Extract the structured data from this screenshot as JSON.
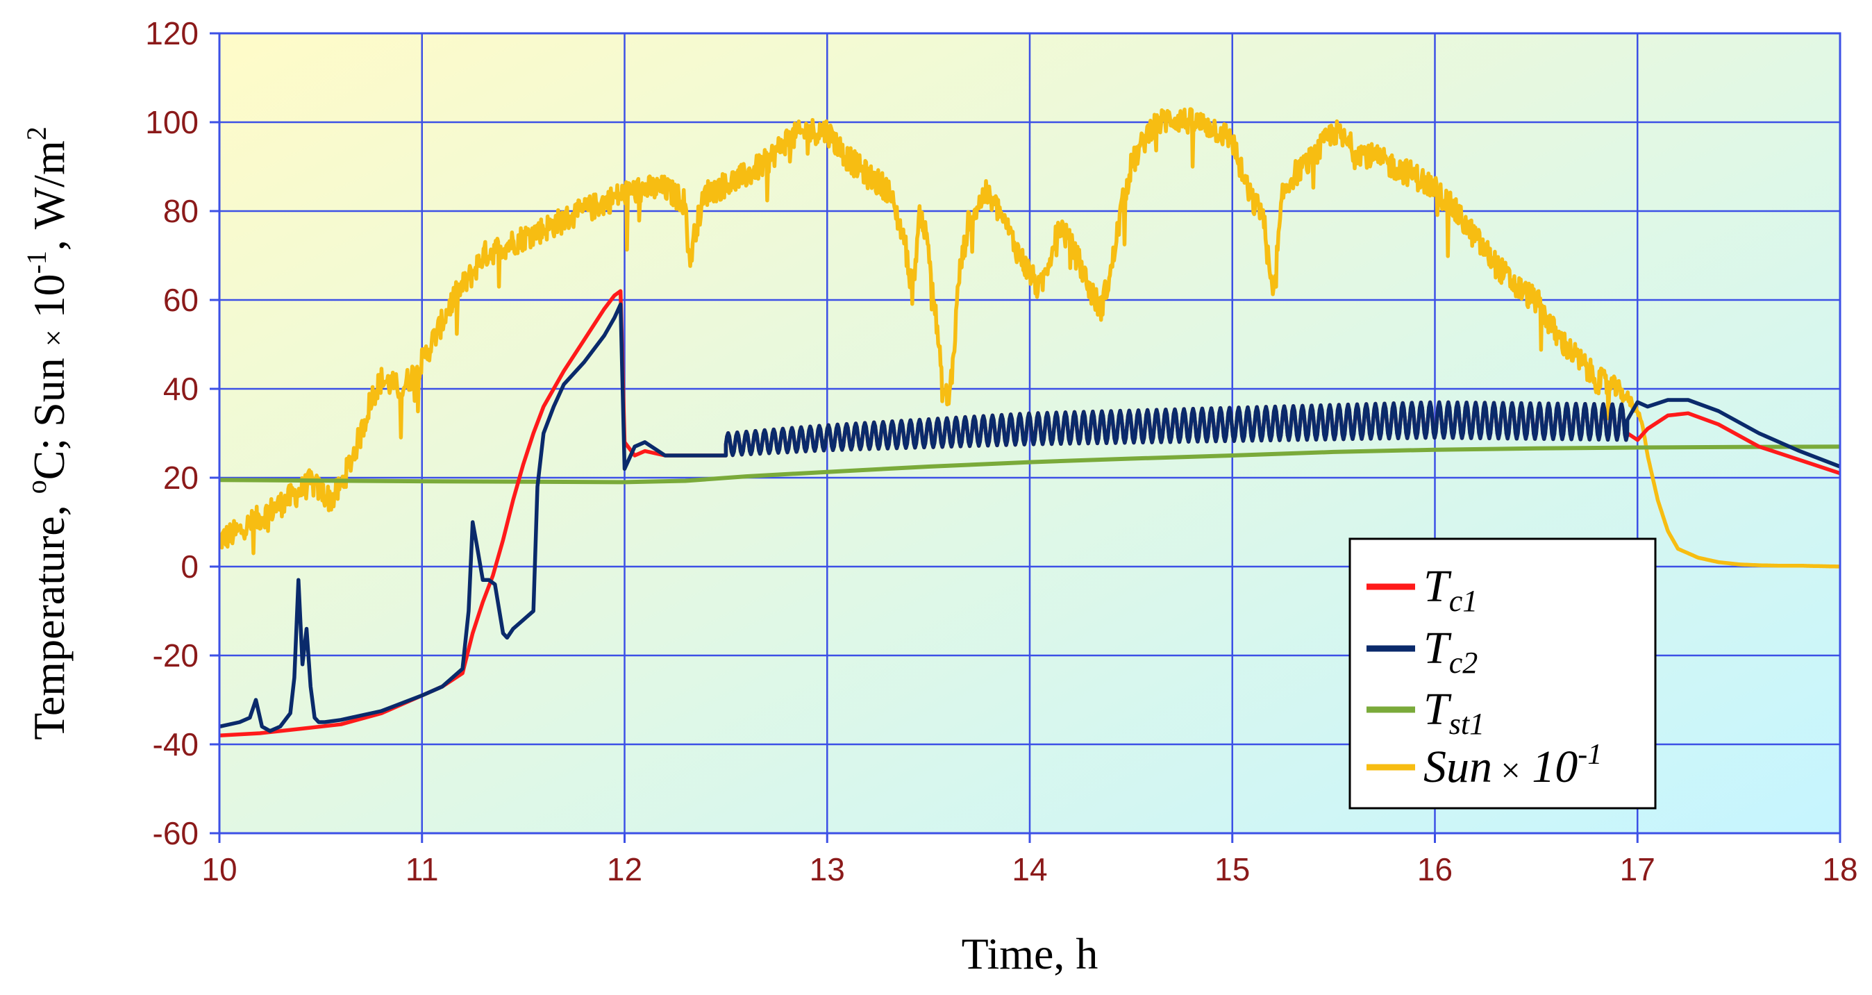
{
  "chart_data": {
    "type": "line",
    "xlabel": "Time, h",
    "ylabel": {
      "part1": "Temperature, ",
      "part2_sup": "o",
      "part3": "C;  Sun ",
      "part4_times": "×",
      "part5": " 10",
      "part6_sup": "-1",
      "part7": ", W/m",
      "part8_sup": "2"
    },
    "xlim": [
      10,
      18
    ],
    "ylim": [
      -60,
      120
    ],
    "x_ticks": [
      "10",
      "11",
      "12",
      "13",
      "14",
      "15",
      "16",
      "17",
      "18"
    ],
    "y_ticks": [
      "120",
      "100",
      "80",
      "60",
      "40",
      "20",
      "0",
      "-20",
      "-40",
      "-60"
    ],
    "grid": true,
    "legend_position": "lower-right",
    "legend": [
      {
        "id": "tc1",
        "base": "T",
        "sub": "c1",
        "suffix_times": "",
        "suffix": "",
        "suffix_sup": ""
      },
      {
        "id": "tc2",
        "base": "T",
        "sub": "c2",
        "suffix_times": "",
        "suffix": "",
        "suffix_sup": ""
      },
      {
        "id": "tst1",
        "base": "T",
        "sub": "st1",
        "suffix_times": "",
        "suffix": "",
        "suffix_sup": ""
      },
      {
        "id": "sun",
        "base": "Sun",
        "sub": "",
        "suffix_times": " ×",
        "suffix": " 10",
        "suffix_sup": "-1"
      }
    ],
    "colors": {
      "tc1": "#ff1a1a",
      "tc2": "#0a2a6b",
      "tst1": "#7aaa3a",
      "sun": "#f7bd12",
      "grid": "#3c50e6",
      "tick_labels": "#8b1a1a",
      "bg_top_left": "#fffbc8",
      "bg_bottom_right": "#c6f5ff"
    },
    "series": [
      {
        "key": "sun",
        "x": [
          10.0,
          10.1,
          10.2,
          10.3,
          10.4,
          10.45,
          10.5,
          10.55,
          10.6,
          10.7,
          10.75,
          10.8,
          10.9,
          11.0,
          11.1,
          11.15,
          11.2,
          11.25,
          11.3,
          11.4,
          11.5,
          11.6,
          11.7,
          11.8,
          11.9,
          12.0,
          12.1,
          12.2,
          12.3,
          12.32,
          12.35,
          12.4,
          12.5,
          12.6,
          12.7,
          12.8,
          12.9,
          13.0,
          13.1,
          13.2,
          13.3,
          13.38,
          13.42,
          13.46,
          13.5,
          13.55,
          13.57,
          13.6,
          13.62,
          13.65,
          13.7,
          13.78,
          13.85,
          13.95,
          14.05,
          14.1,
          14.15,
          14.25,
          14.3,
          14.35,
          14.4,
          14.45,
          14.5,
          14.6,
          14.7,
          14.8,
          14.9,
          15.0,
          15.05,
          15.1,
          15.15,
          15.2,
          15.25,
          15.3,
          15.4,
          15.5,
          15.6,
          15.7,
          15.8,
          15.9,
          16.0,
          16.1,
          16.2,
          16.3,
          16.4,
          16.5,
          16.6,
          16.7,
          16.8,
          16.9,
          16.95,
          17.0,
          17.02,
          17.05,
          17.1,
          17.15,
          17.2,
          17.3,
          17.4,
          17.5,
          17.6,
          17.7,
          17.8,
          17.9,
          18.0
        ],
        "y": [
          6,
          8,
          11,
          14,
          17,
          19,
          17,
          15,
          18,
          30,
          38,
          42,
          40,
          46,
          55,
          60,
          63,
          66,
          70,
          72,
          74,
          76,
          78,
          80,
          82,
          84,
          85,
          85,
          82,
          68,
          76,
          84,
          86,
          88,
          91,
          96,
          98,
          98,
          92,
          88,
          85,
          74,
          62,
          80,
          72,
          50,
          39,
          38,
          45,
          65,
          78,
          84,
          80,
          70,
          62,
          70,
          77,
          68,
          62,
          58,
          66,
          80,
          90,
          99,
          101,
          100,
          99,
          96,
          88,
          82,
          80,
          60,
          84,
          88,
          92,
          98,
          94,
          92,
          90,
          88,
          85,
          80,
          74,
          68,
          63,
          60,
          52,
          47,
          42,
          40,
          38,
          35,
          33,
          25,
          15,
          8,
          4,
          2,
          1,
          0.5,
          0.3,
          0.2,
          0.2,
          0.1,
          0
        ],
        "noise": 3.0
      },
      {
        "key": "tst1",
        "x": [
          10.0,
          11.0,
          12.0,
          12.3,
          12.6,
          13.0,
          13.5,
          14.0,
          14.5,
          15.0,
          15.5,
          16.0,
          16.5,
          17.0,
          17.5,
          18.0
        ],
        "y": [
          19.5,
          19.2,
          19.0,
          19.3,
          20.3,
          21.3,
          22.5,
          23.5,
          24.3,
          25.0,
          25.8,
          26.3,
          26.6,
          26.8,
          26.9,
          27.0
        ],
        "noise": 0
      },
      {
        "key": "tc1",
        "x": [
          10.0,
          10.2,
          10.4,
          10.6,
          10.8,
          11.0,
          11.1,
          11.2,
          11.25,
          11.3,
          11.35,
          11.4,
          11.45,
          11.5,
          11.55,
          11.6,
          11.7,
          11.8,
          11.9,
          11.95,
          11.98,
          12.0,
          12.05,
          12.1,
          12.2,
          12.3,
          12.4,
          12.5
        ],
        "y": [
          -38,
          -37.5,
          -36.5,
          -35.5,
          -33,
          -29,
          -27,
          -24,
          -15,
          -8,
          -2,
          6,
          15,
          23,
          30,
          36,
          44,
          51,
          58,
          61,
          62,
          28,
          25,
          26,
          25,
          25,
          25,
          25
        ],
        "noise": 0,
        "oscillation": {
          "x_start": 12.5,
          "x_end": 16.95,
          "period": 0.045,
          "center": [
            [
              12.5,
              27.5
            ],
            [
              13.0,
              29.0
            ],
            [
              14.0,
              31.0
            ],
            [
              15.0,
              32.0
            ],
            [
              16.0,
              33.0
            ],
            [
              16.95,
              32.5
            ]
          ],
          "amplitude": [
            [
              12.5,
              2.5
            ],
            [
              14.0,
              3.5
            ],
            [
              16.0,
              4.0
            ],
            [
              16.95,
              4.0
            ]
          ]
        },
        "tail_x": [
          16.95,
          17.0,
          17.05,
          17.15,
          17.25,
          17.4,
          17.6,
          17.8,
          18.0
        ],
        "tail_y": [
          30,
          28.5,
          31,
          34,
          34.5,
          32,
          27,
          24,
          21
        ]
      },
      {
        "key": "tc2",
        "x": [
          10.0,
          10.1,
          10.15,
          10.18,
          10.21,
          10.25,
          10.3,
          10.35,
          10.37,
          10.39,
          10.41,
          10.43,
          10.45,
          10.47,
          10.49,
          10.52,
          10.6,
          10.8,
          11.0,
          11.1,
          11.2,
          11.23,
          11.25,
          11.27,
          11.3,
          11.33,
          11.36,
          11.4,
          11.42,
          11.45,
          11.5,
          11.55,
          11.57,
          11.6,
          11.65,
          11.7,
          11.8,
          11.9,
          11.95,
          11.98,
          12.0,
          12.05,
          12.1,
          12.2,
          12.3,
          12.4,
          12.5
        ],
        "y": [
          -36,
          -35,
          -34,
          -30,
          -36,
          -37,
          -36,
          -33,
          -25,
          -3,
          -22,
          -14,
          -27,
          -34,
          -35,
          -35,
          -34.5,
          -32.5,
          -29,
          -27,
          -23,
          -10,
          10,
          5,
          -3,
          -3,
          -4,
          -15,
          -16,
          -14,
          -12,
          -10,
          18,
          30,
          36,
          41,
          46,
          52,
          56,
          59,
          22,
          27,
          28,
          25,
          25,
          25,
          25
        ],
        "noise": 0,
        "oscillation": {
          "x_start": 12.5,
          "x_end": 16.95,
          "period": 0.045,
          "center": [
            [
              12.5,
              27.5
            ],
            [
              13.0,
              29.0
            ],
            [
              14.0,
              31.0
            ],
            [
              15.0,
              32.0
            ],
            [
              16.0,
              33.0
            ],
            [
              16.95,
              32.5
            ]
          ],
          "amplitude": [
            [
              12.5,
              2.5
            ],
            [
              14.0,
              3.5
            ],
            [
              16.0,
              4.0
            ],
            [
              16.95,
              4.0
            ]
          ]
        },
        "tail_x": [
          16.95,
          17.0,
          17.05,
          17.15,
          17.25,
          17.4,
          17.6,
          17.8,
          18.0
        ],
        "tail_y": [
          33,
          37,
          36,
          37.5,
          37.5,
          35,
          30,
          26,
          22.5
        ]
      }
    ]
  }
}
